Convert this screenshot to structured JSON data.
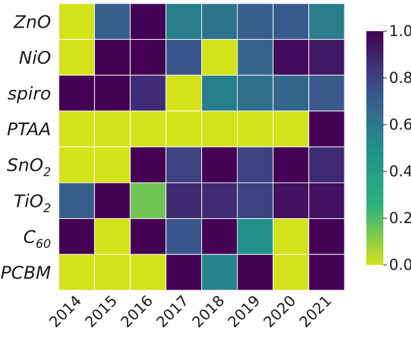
{
  "chart_data": {
    "type": "heatmap",
    "rows": [
      {
        "label": "ZnO",
        "sub": ""
      },
      {
        "label": "NiO",
        "sub": ""
      },
      {
        "label": "spiro",
        "sub": ""
      },
      {
        "label": "PTAA",
        "sub": ""
      },
      {
        "label": "SnO",
        "sub": "2"
      },
      {
        "label": "TiO",
        "sub": "2"
      },
      {
        "label": "C",
        "sub": "60"
      },
      {
        "label": "PCBM",
        "sub": ""
      }
    ],
    "columns": [
      "2014",
      "2015",
      "2016",
      "2017",
      "2018",
      "2019",
      "2020",
      "2021"
    ],
    "values": [
      [
        0.0,
        0.7,
        1.0,
        0.58,
        0.62,
        0.7,
        0.72,
        0.58
      ],
      [
        0.0,
        1.0,
        1.0,
        0.73,
        0.0,
        0.68,
        0.97,
        0.93
      ],
      [
        1.0,
        1.0,
        0.87,
        0.0,
        0.57,
        0.63,
        0.67,
        0.72
      ],
      [
        0.0,
        0.0,
        0.0,
        0.0,
        0.0,
        0.0,
        0.0,
        1.0
      ],
      [
        0.0,
        0.0,
        1.0,
        0.8,
        1.0,
        0.8,
        1.0,
        0.87
      ],
      [
        0.7,
        1.0,
        0.15,
        0.88,
        0.87,
        0.8,
        0.95,
        0.95
      ],
      [
        1.0,
        0.0,
        1.0,
        0.73,
        1.0,
        0.5,
        0.0,
        1.0
      ],
      [
        0.0,
        0.0,
        0.0,
        1.0,
        0.55,
        1.0,
        0.0,
        1.0
      ]
    ],
    "colorbar": {
      "min": 0.0,
      "max": 1.0,
      "ticks": [
        "0.0",
        "0.2",
        "0.4",
        "0.6",
        "0.8",
        "1.0"
      ],
      "colormap": [
        "#d4e21a",
        "#2db27d",
        "#21918c",
        "#3b528b",
        "#440154"
      ],
      "direction": "yellow-low to purple-high"
    },
    "cell_border_color": "#ffffff"
  }
}
